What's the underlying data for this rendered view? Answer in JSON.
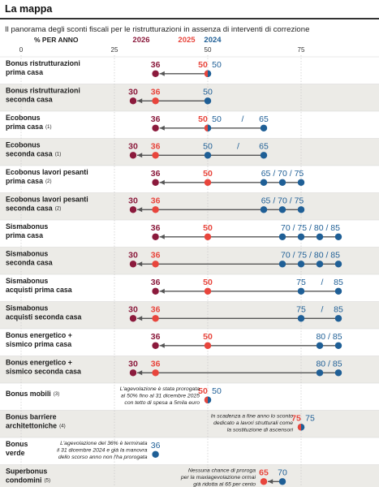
{
  "header": {
    "title": "La mappa"
  },
  "chart_data": {
    "type": "dot-arrow",
    "title": "Il panorama degli sconti fiscali per le ristrutturazioni in assenza di interventi di correzione",
    "axis_label": "% PER ANNO",
    "xlim": [
      0,
      90
    ],
    "ticks": [
      "0",
      "25",
      "50",
      "75"
    ],
    "tick_values": [
      0,
      25,
      50,
      75
    ],
    "legend": [
      "2026",
      "2025",
      "2024"
    ],
    "colors": {
      "y2026": "#8b1a3c",
      "y2025": "#e8453c",
      "y2024": "#1f5f96",
      "arrow": "#555555",
      "band": "#ecebe7",
      "grid": "#c8c8c8"
    },
    "rows": [
      {
        "label": "Bonus ristrutturazioni\nprima casa",
        "y2026": [
          36
        ],
        "y2025": [
          50
        ],
        "y2024": [
          50
        ],
        "labels": [
          "36",
          "50",
          "50"
        ]
      },
      {
        "label": "Bonus ristrutturazioni\nseconda casa",
        "y2026": [
          30
        ],
        "y2025": [
          36
        ],
        "y2024": [
          50
        ],
        "labels": [
          "30",
          "36",
          "50"
        ]
      },
      {
        "label": "Ecobonus\nprima casa",
        "note": "(1)",
        "y2026": [
          36
        ],
        "y2025": [
          50
        ],
        "y2024": [
          50,
          65
        ],
        "labels": [
          "36",
          "50",
          "50",
          "/",
          "65"
        ]
      },
      {
        "label": "Ecobonus\nseconda casa",
        "note": "(1)",
        "y2026": [
          30
        ],
        "y2025": [
          36
        ],
        "y2024": [
          50,
          65
        ],
        "labels": [
          "30",
          "36",
          "50",
          "/",
          "65"
        ]
      },
      {
        "label": "Ecobonus lavori pesanti\nprima casa",
        "note": "(2)",
        "y2026": [
          36
        ],
        "y2025": [
          50
        ],
        "y2024": [
          65,
          70,
          75
        ],
        "labels": [
          "36",
          "50",
          "65 / 70 / 75"
        ]
      },
      {
        "label": "Ecobonus lavori pesanti\nseconda casa",
        "note": "(2)",
        "y2026": [
          30
        ],
        "y2025": [
          36
        ],
        "y2024": [
          65,
          70,
          75
        ],
        "labels": [
          "30",
          "36",
          "65 / 70 / 75"
        ]
      },
      {
        "label": "Sismabonus\nprima casa",
        "y2026": [
          36
        ],
        "y2025": [
          50
        ],
        "y2024": [
          70,
          75,
          80,
          85
        ],
        "labels": [
          "36",
          "50",
          "70 / 75 / 80 / 85"
        ]
      },
      {
        "label": "Sismabonus\nseconda casa",
        "y2026": [
          30
        ],
        "y2025": [
          36
        ],
        "y2024": [
          70,
          75,
          80,
          85
        ],
        "labels": [
          "30",
          "36",
          "70 / 75 / 80 / 85"
        ]
      },
      {
        "label": "Sismabonus\nacquisti prima casa",
        "y2026": [
          36
        ],
        "y2025": [
          50
        ],
        "y2024": [
          75,
          85
        ],
        "labels": [
          "36",
          "50",
          "75",
          "/",
          "85"
        ]
      },
      {
        "label": "Sismabonus\nacquisti seconda casa",
        "y2026": [
          30
        ],
        "y2025": [
          36
        ],
        "y2024": [
          75,
          85
        ],
        "labels": [
          "30",
          "36",
          "75",
          "/",
          "85"
        ]
      },
      {
        "label": "Bonus energetico +\nsismico prima casa",
        "y2026": [
          36
        ],
        "y2025": [
          50
        ],
        "y2024": [
          80,
          85
        ],
        "labels": [
          "36",
          "50",
          "80 / 85"
        ]
      },
      {
        "label": "Bonus energetico +\nsismico seconda casa",
        "y2026": [
          30
        ],
        "y2025": [
          36
        ],
        "y2024": [
          80,
          85
        ],
        "labels": [
          "30",
          "36",
          "80 / 85"
        ]
      },
      {
        "label": "Bonus mobili",
        "note": "(3)",
        "y2025": [
          50
        ],
        "y2024": [
          50
        ],
        "labels": [
          "50",
          "50"
        ],
        "annotation": [
          "L'agevolazione è stata prorogata",
          "al 50% fino al 31 dicembre 2025",
          "con tetto di spesa a 5mila euro"
        ]
      },
      {
        "label": "Bonus barriere\narchitettoniche",
        "note": "(4)",
        "y2025": [
          75
        ],
        "y2024": [
          75
        ],
        "labels": [
          "75",
          "75"
        ],
        "annotation": [
          "In scadenza a fine anno lo sconto",
          "dedicato a lavori strutturali come",
          "la sostituzione di ascensori"
        ]
      },
      {
        "label": "Bonus\nverde",
        "y2024": [
          36
        ],
        "labels": [
          "36"
        ],
        "annotation": [
          "L'agevolazione del 36% è terminata",
          "il 31 dicembre 2024 e già la manovra",
          "dello scorso anno non l'ha prorogata"
        ]
      },
      {
        "label": "Superbonus\ncondomini",
        "note": "(5)",
        "y2025": [
          65
        ],
        "y2024": [
          70
        ],
        "labels": [
          "65",
          "70"
        ],
        "annotation": [
          "Nessuna chance di proroga",
          "per la maxiagevolazione ormai",
          "già ridotta al 65 per cento"
        ]
      }
    ]
  }
}
